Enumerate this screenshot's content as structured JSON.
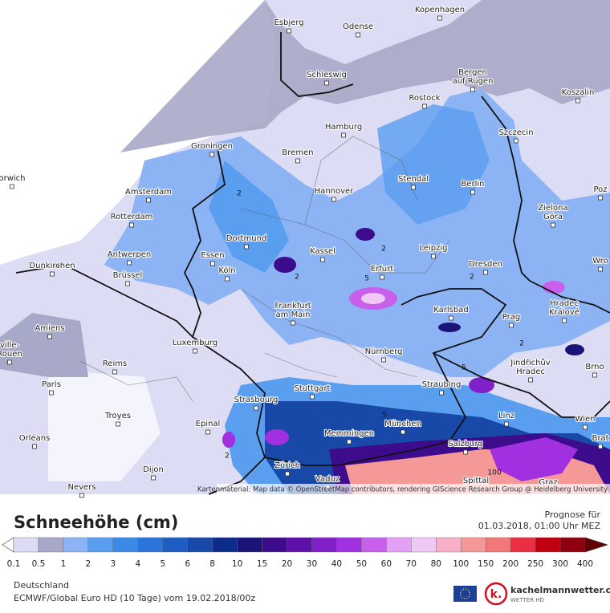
{
  "map": {
    "cities": [
      {
        "lines": [
          "Esbjerg"
        ]
      },
      {
        "lines": [
          "Odense"
        ]
      },
      {
        "lines": [
          "Kopenhagen"
        ]
      },
      {
        "lines": [
          "Schleswig"
        ]
      },
      {
        "lines": [
          "Bergen",
          "auf Rügen"
        ]
      },
      {
        "lines": [
          "Koszalin"
        ]
      },
      {
        "lines": [
          "Rostock"
        ]
      },
      {
        "lines": [
          "Hamburg"
        ]
      },
      {
        "lines": [
          "Szczecin"
        ]
      },
      {
        "lines": [
          "Groningen"
        ]
      },
      {
        "lines": [
          "Bremen"
        ]
      },
      {
        "lines": [
          "Zielona",
          "Góra"
        ]
      },
      {
        "lines": [
          "Amsterdam"
        ]
      },
      {
        "lines": [
          "Hannover"
        ]
      },
      {
        "lines": [
          "Stendal"
        ]
      },
      {
        "lines": [
          "Berlin"
        ]
      },
      {
        "lines": [
          "Poz"
        ]
      },
      {
        "lines": [
          "orwich"
        ]
      },
      {
        "lines": [
          "Rotterdam"
        ]
      },
      {
        "lines": [
          "Dortmund"
        ]
      },
      {
        "lines": [
          "Kassel"
        ]
      },
      {
        "lines": [
          "Leipzig"
        ]
      },
      {
        "lines": [
          "Dunkirchen"
        ]
      },
      {
        "lines": [
          "Antwerpen"
        ]
      },
      {
        "lines": [
          "Essen"
        ]
      },
      {
        "lines": [
          "Dresden"
        ]
      },
      {
        "lines": [
          "Wro"
        ]
      },
      {
        "lines": [
          "Brüssel"
        ]
      },
      {
        "lines": [
          "Köln"
        ]
      },
      {
        "lines": [
          "Erfurt"
        ]
      },
      {
        "lines": [
          "Frankfurt",
          "am Main"
        ]
      },
      {
        "lines": [
          "Karlsbad"
        ]
      },
      {
        "lines": [
          "Hradec",
          "Králové"
        ]
      },
      {
        "lines": [
          "Amiens"
        ]
      },
      {
        "lines": [
          "Prag"
        ]
      },
      {
        "lines": [
          "Luxemburg"
        ]
      },
      {
        "lines": [
          "Nürnberg"
        ]
      },
      {
        "lines": [
          "ville-",
          "Rouen"
        ]
      },
      {
        "lines": [
          "Jindřichův",
          "Hradec"
        ]
      },
      {
        "lines": [
          "Brno"
        ]
      },
      {
        "lines": [
          "Reims"
        ]
      },
      {
        "lines": [
          "Paris"
        ]
      },
      {
        "lines": [
          "Stuttgart"
        ]
      },
      {
        "lines": [
          "Straubing"
        ]
      },
      {
        "lines": [
          "Strasbourg"
        ]
      },
      {
        "lines": [
          "Troyes"
        ]
      },
      {
        "lines": [
          "Linz"
        ]
      },
      {
        "lines": [
          "Wien"
        ]
      },
      {
        "lines": [
          "Epinal"
        ]
      },
      {
        "lines": [
          "München"
        ]
      },
      {
        "lines": [
          "Memmingen"
        ]
      },
      {
        "lines": [
          "Brat"
        ]
      },
      {
        "lines": [
          "Orléans"
        ]
      },
      {
        "lines": [
          "Salzburg"
        ]
      },
      {
        "lines": [
          "Zürich"
        ]
      },
      {
        "lines": [
          "Dijon"
        ]
      },
      {
        "lines": [
          "Vaduz"
        ]
      },
      {
        "lines": [
          "Spittal"
        ]
      },
      {
        "lines": [
          "Graz"
        ]
      },
      {
        "lines": [
          "Nevers"
        ]
      }
    ],
    "contour_labels": [
      "2",
      "2",
      "2",
      "2",
      "2",
      "2",
      "5",
      "5",
      "5",
      "100"
    ],
    "attribution": "Kartenmaterial: Map data © OpenStreetMap contributors, rendering GIScience Research Group @ Heidelberg University"
  },
  "header": {
    "title": "Schneehöhe (cm)",
    "forecast_label": "Prognose für",
    "forecast_time": "01.03.2018, 01:00 Uhr MEZ"
  },
  "legend": {
    "labels": [
      "0.1",
      "0.5",
      "1",
      "2",
      "3",
      "4",
      "5",
      "6",
      "8",
      "10",
      "15",
      "20",
      "30",
      "40",
      "50",
      "60",
      "70",
      "80",
      "100",
      "150",
      "200",
      "250",
      "300",
      "400"
    ],
    "low_color": "#ffffff",
    "colors": [
      "#dcdcf4",
      "#a8a8c8",
      "#8cb4f4",
      "#5a9ef0",
      "#3c8ae8",
      "#2a74dc",
      "#1e5ec4",
      "#1848a8",
      "#0c2c8c",
      "#1a1478",
      "#3c0c8c",
      "#5c10a8",
      "#8020c8",
      "#a030e0",
      "#c860ec",
      "#e4a0f4",
      "#f0c8f4",
      "#f8b0c8",
      "#f49898",
      "#f07878",
      "#e83040",
      "#c00010",
      "#900010"
    ],
    "high_color": "#600000"
  },
  "footer": {
    "region": "Deutschland",
    "model": "ECMWF/Global Euro HD (10 Tage) vom 19.02.2018/00z",
    "brand": "kachelmannwetter.com",
    "brand_sub": "WETTER HD"
  }
}
